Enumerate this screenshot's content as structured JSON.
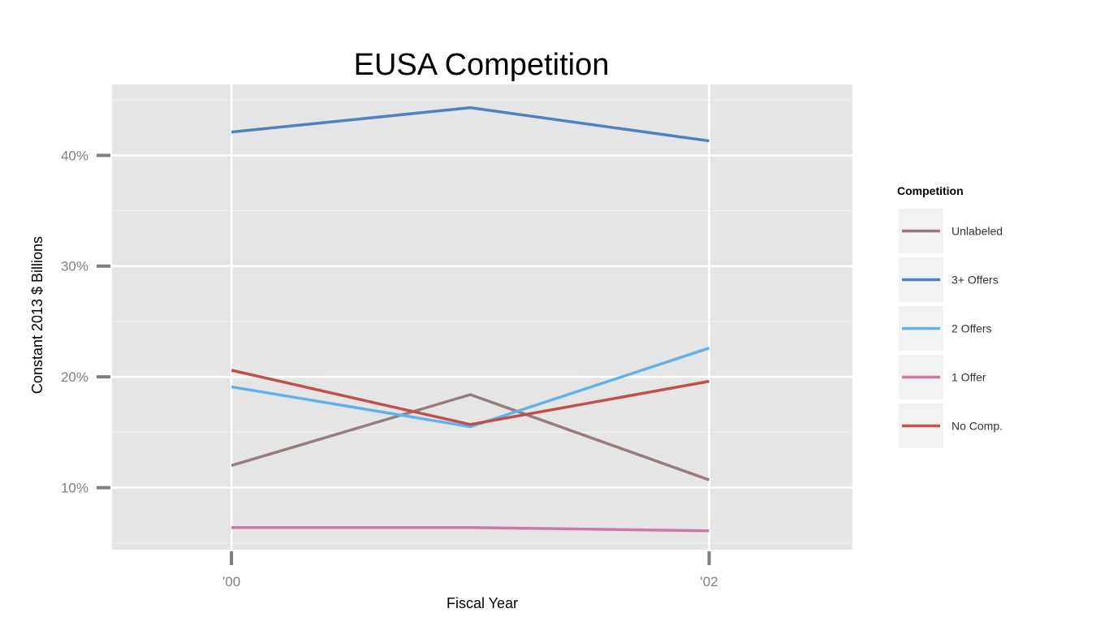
{
  "chart_data": {
    "type": "line",
    "title": "EUSA Competition",
    "xlabel": "Fiscal Year",
    "ylabel": "Constant 2013 $ Billions",
    "x": [
      2000,
      2001,
      2002
    ],
    "xlim": [
      1999.5,
      2002.6
    ],
    "ylim": [
      0.044,
      0.464
    ],
    "x_ticks": [
      2000,
      2002
    ],
    "x_tick_labels": [
      "'00",
      "'02"
    ],
    "y_major_ticks": [
      0.1,
      0.2,
      0.3,
      0.4
    ],
    "y_tick_labels": [
      "10%",
      "20%",
      "30%",
      "40%"
    ],
    "y_minor_ticks": [
      0.05,
      0.15,
      0.25,
      0.35,
      0.45
    ],
    "grid": true,
    "legend_title": "Competition",
    "legend_position": "right",
    "series": [
      {
        "name": "Unlabeled",
        "color": "#9a7b7b",
        "values": [
          0.12,
          0.184,
          0.107
        ]
      },
      {
        "name": "3+ Offers",
        "color": "#4f81bd",
        "values": [
          0.421,
          0.443,
          0.413
        ]
      },
      {
        "name": "2 Offers",
        "color": "#63b3ea",
        "values": [
          0.191,
          0.155,
          0.226
        ]
      },
      {
        "name": "1 Offer",
        "color": "#cc79a7",
        "values": [
          0.064,
          0.064,
          0.061
        ]
      },
      {
        "name": "No Comp.",
        "color": "#c0504d",
        "values": [
          0.206,
          0.157,
          0.196
        ]
      }
    ]
  }
}
